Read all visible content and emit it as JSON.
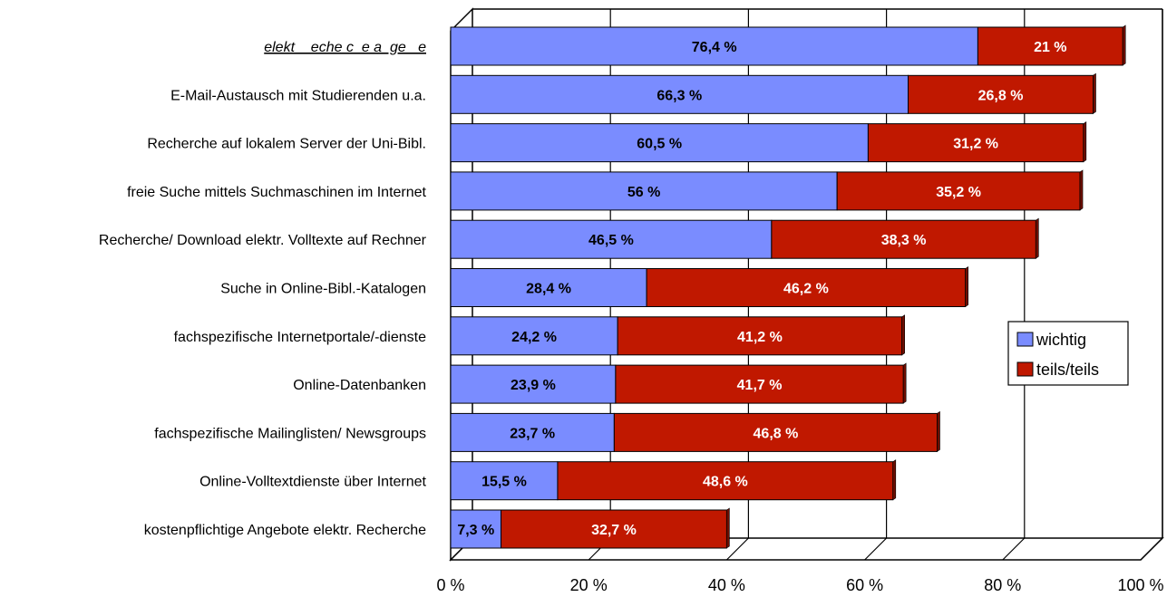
{
  "chart_data": {
    "type": "bar",
    "orientation": "horizontal",
    "stacked": true,
    "categories": [
      "elekt    eche c  e a  ge   e",
      "E-Mail-Austausch mit Studierenden u.a.",
      "Recherche auf lokalem Server der Uni-Bibl.",
      "freie Suche mittels Suchmaschinen im Internet",
      "Recherche/ Download elektr. Volltexte auf Rechner",
      "Suche in Online-Bibl.-Katalogen",
      "fachspezifische Internetportale/-dienste",
      "Online-Datenbanken",
      "fachspezifische Mailinglisten/ Newsgroups",
      "Online-Volltextdienste über Internet",
      "kostenpflichtige Angebote elektr. Recherche"
    ],
    "series": [
      {
        "name": "wichtig",
        "color": "#7a8cff",
        "values": [
          76.4,
          66.3,
          60.5,
          56,
          46.5,
          28.4,
          24.2,
          23.9,
          23.7,
          15.5,
          7.3
        ],
        "labels": [
          "76,4 %",
          "66,3 %",
          "60,5 %",
          "56 %",
          "46,5 %",
          "28,4 %",
          "24,2 %",
          "23,9 %",
          "23,7 %",
          "15,5 %",
          "7,3 %"
        ]
      },
      {
        "name": "teils/teils",
        "color": "#c01800",
        "values": [
          21,
          26.8,
          31.2,
          35.2,
          38.3,
          46.2,
          41.2,
          41.7,
          46.8,
          48.6,
          32.7
        ],
        "labels": [
          "21 %",
          "26,8 %",
          "31,2 %",
          "35,2 %",
          "38,3 %",
          "46,2 %",
          "41,2 %",
          "41,7 %",
          "46,8 %",
          "48,6 %",
          "32,7 %"
        ]
      }
    ],
    "xlim": [
      0,
      100
    ],
    "xticks": [
      0,
      20,
      40,
      60,
      80,
      100
    ],
    "xtick_labels": [
      "0 %",
      "20 %",
      "40 %",
      "60 %",
      "80 %",
      "100 %"
    ],
    "grid": true,
    "legend": "right"
  }
}
